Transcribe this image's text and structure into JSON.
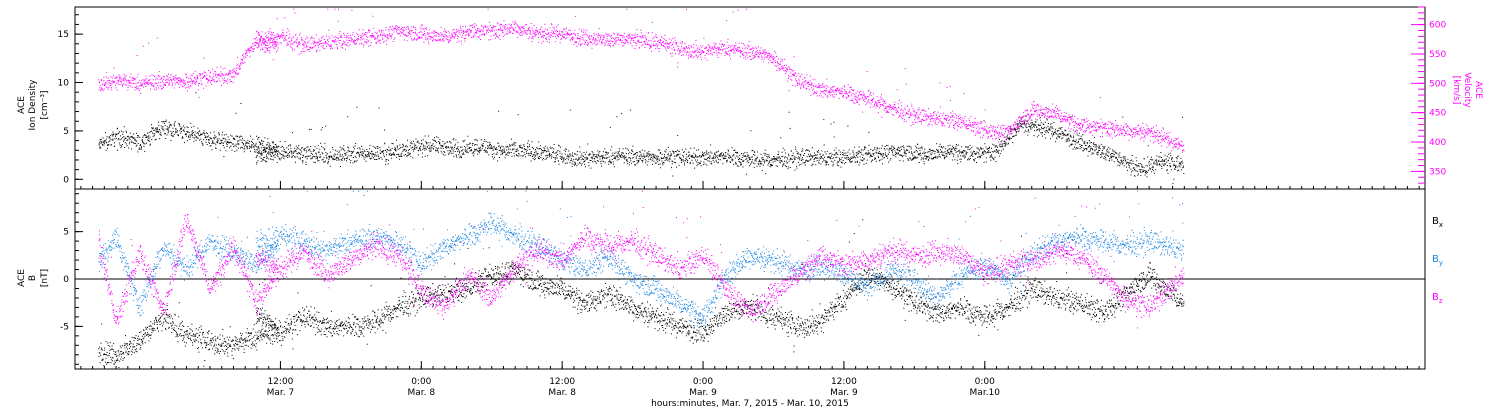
{
  "chart_data": [
    {
      "type": "scatter",
      "panel": "top",
      "ylabel_left": [
        "ACE",
        "Ion Density",
        "[cm⁻³]"
      ],
      "ylabel_right": [
        "ACE",
        "Velocity",
        "[km/s]"
      ],
      "ylim_left": [
        -1,
        17.8
      ],
      "yticks_left": [
        "0",
        "5",
        "10",
        "15"
      ],
      "ylim_right": [
        320,
        630
      ],
      "yticks_right": [
        "350",
        "400",
        "450",
        "500",
        "550",
        "600"
      ],
      "series": [
        {
          "axis": "left",
          "color": "#000000",
          "segments": [
            {
              "x": [
                -15.5,
                -14,
                -12,
                -10,
                -8,
                -6,
                -4,
                -2,
                -0.2
              ],
              "y": [
                3.5,
                4.5,
                3.8,
                5.5,
                4.8,
                4.2,
                3.8,
                3.4,
                3.2
              ]
            },
            {
              "x": [
                -2.1,
                1,
                3,
                5,
                7,
                9,
                11,
                13,
                15,
                17,
                19,
                21,
                23,
                25,
                27,
                29,
                31,
                33,
                35,
                37,
                39,
                41,
                43,
                45,
                47,
                49,
                51,
                53,
                55,
                57,
                59,
                61,
                63,
                65,
                67,
                69,
                71,
                73,
                75,
                76.9
              ],
              "y": [
                2.6,
                2.9,
                2.6,
                2.5,
                2.7,
                2.8,
                3.2,
                3.6,
                3.1,
                3.5,
                2.9,
                3.0,
                2.6,
                2.3,
                2.2,
                2.5,
                2.3,
                2.4,
                2.2,
                2.4,
                2.3,
                2.0,
                2.1,
                2.3,
                2.2,
                2.4,
                2.8,
                2.9,
                2.6,
                3.0,
                2.7,
                2.9,
                5.8,
                5.3,
                4.5,
                3.4,
                2.4,
                1.0,
                1.8,
                1.6
              ]
            }
          ]
        },
        {
          "axis": "right",
          "color": "#ff00ff",
          "segments": [
            {
              "x": [
                -15.5,
                -14,
                -12,
                -10,
                -8,
                -6,
                -4,
                -3,
                -2,
                -0.2
              ],
              "y": [
                500,
                505,
                500,
                505,
                505,
                510,
                515,
                550,
                570,
                565
              ]
            },
            {
              "x": [
                -2.1,
                0,
                2,
                4,
                6,
                8,
                10,
                12,
                14,
                16,
                18,
                20,
                22,
                24,
                26,
                28,
                30,
                32,
                34,
                36,
                38,
                40,
                42,
                44,
                46,
                48,
                50,
                52,
                54,
                56,
                58,
                60,
                62,
                64,
                66,
                68,
                70,
                72,
                74,
                76.9
              ],
              "y": [
                575,
                580,
                565,
                570,
                575,
                580,
                590,
                585,
                580,
                590,
                590,
                595,
                585,
                585,
                578,
                575,
                575,
                570,
                560,
                555,
                560,
                555,
                545,
                505,
                490,
                485,
                475,
                458,
                445,
                440,
                435,
                420,
                418,
                455,
                450,
                430,
                425,
                420,
                418,
                392
              ]
            }
          ]
        }
      ]
    },
    {
      "type": "scatter",
      "panel": "bottom",
      "ylabel_left": [
        "ACE",
        "B",
        "[nT]"
      ],
      "ylim": [
        -9.5,
        9.5
      ],
      "yticks": [
        "-5",
        "0",
        "5"
      ],
      "zero_line": true,
      "legend_placement": "right",
      "series": [
        {
          "name": "Bx",
          "color": "#000000",
          "segments": [
            {
              "x": [
                -15.5,
                -14,
                -12,
                -10,
                -8,
                -6,
                -4,
                -2,
                -0.2
              ],
              "y": [
                -7.5,
                -8.0,
                -6.5,
                -4.0,
                -6.0,
                -6.5,
                -7.0,
                -6.0,
                -5.5
              ]
            },
            {
              "x": [
                -2.1,
                0,
                2,
                4,
                6,
                8,
                10,
                12,
                14,
                16,
                18,
                20,
                22,
                24,
                26,
                28,
                30,
                32,
                34,
                36,
                38,
                40,
                42,
                44,
                46,
                48,
                50,
                52,
                54,
                56,
                58,
                60,
                62,
                64,
                66,
                68,
                70,
                72,
                74,
                76.9
              ],
              "y": [
                -3.5,
                -5.5,
                -4.0,
                -5.0,
                -5.0,
                -4.5,
                -3.0,
                -2.0,
                -1.5,
                -1.0,
                0.5,
                1.0,
                -0.5,
                -1.0,
                -2.5,
                -1.5,
                -3.0,
                -4.0,
                -5.0,
                -5.5,
                -3.5,
                -3.0,
                -4.0,
                -5.0,
                -4.5,
                -2.0,
                0.5,
                -0.5,
                -2.5,
                -3.5,
                -3.0,
                -4.0,
                -3.0,
                -1.0,
                -2.0,
                -2.5,
                -3.5,
                -1.5,
                0.5,
                -2.5
              ]
            }
          ]
        },
        {
          "name": "By",
          "color": "#1e88e5",
          "segments": [
            {
              "x": [
                -15.5,
                -14,
                -12,
                -10,
                -8,
                -6,
                -4,
                -2,
                -0.2
              ],
              "y": [
                2.0,
                4.5,
                -3.0,
                3.5,
                1.0,
                4.0,
                3.0,
                1.5,
                3.5
              ]
            },
            {
              "x": [
                -2.1,
                0,
                2,
                4,
                6,
                8,
                10,
                12,
                14,
                16,
                18,
                20,
                22,
                24,
                26,
                28,
                30,
                32,
                34,
                36,
                38,
                40,
                42,
                44,
                46,
                48,
                50,
                52,
                54,
                56,
                58,
                60,
                62,
                64,
                66,
                68,
                70,
                72,
                74,
                76.9
              ],
              "y": [
                3.5,
                4.5,
                4.0,
                3.0,
                4.0,
                4.5,
                4.0,
                1.5,
                3.5,
                4.5,
                6.0,
                4.5,
                3.5,
                2.0,
                1.0,
                2.5,
                0.0,
                -1.0,
                -2.5,
                -4.0,
                0.5,
                2.5,
                2.0,
                1.0,
                1.5,
                0.5,
                -1.0,
                1.0,
                0.0,
                -2.0,
                0.5,
                1.5,
                0.0,
                2.5,
                4.0,
                4.5,
                4.0,
                3.5,
                4.0,
                3.0
              ]
            }
          ]
        },
        {
          "name": "Bz",
          "color": "#ff00ff",
          "segments": [
            {
              "x": [
                -15.5,
                -14,
                -12,
                -10,
                -8,
                -6,
                -4,
                -2,
                -0.2
              ],
              "y": [
                4.0,
                -4.5,
                3.0,
                -3.5,
                6.5,
                -1.0,
                3.5,
                -2.5,
                1.0
              ]
            },
            {
              "x": [
                -2.1,
                0,
                2,
                4,
                6,
                8,
                10,
                12,
                14,
                16,
                18,
                20,
                22,
                24,
                26,
                28,
                30,
                32,
                34,
                36,
                38,
                40,
                42,
                44,
                46,
                48,
                50,
                52,
                54,
                56,
                58,
                60,
                62,
                64,
                66,
                68,
                70,
                72,
                74,
                76.9
              ],
              "y": [
                2.5,
                1.0,
                3.0,
                0.5,
                2.0,
                3.5,
                2.5,
                -1.0,
                -3.0,
                0.5,
                -2.0,
                1.5,
                3.0,
                2.0,
                4.5,
                3.5,
                4.0,
                2.5,
                1.0,
                2.5,
                -1.0,
                -3.5,
                -1.5,
                0.5,
                2.5,
                1.5,
                2.0,
                3.0,
                2.5,
                3.0,
                2.5,
                0.5,
                1.5,
                2.0,
                3.0,
                2.5,
                0.5,
                -2.0,
                -3.0,
                0.5
              ]
            }
          ]
        }
      ]
    },
    {
      "type": "time-axis",
      "xlim": [
        -17.5,
        97.5
      ],
      "major_ticks": [
        {
          "x": 0,
          "time": "12:00",
          "date": "Mar. 7"
        },
        {
          "x": 12,
          "time": "0:00",
          "date": "Mar. 8"
        },
        {
          "x": 24,
          "time": "12:00",
          "date": "Mar. 8"
        },
        {
          "x": 36,
          "time": "0:00",
          "date": "Mar. 9"
        },
        {
          "x": 48,
          "time": "12:00",
          "date": "Mar. 9"
        },
        {
          "x": 60,
          "time": "0:00",
          "date": "Mar.10"
        }
      ],
      "minor_tick_step": 1,
      "xlabel": "hours:minutes, Mar.  7, 2015 - Mar. 10, 2015"
    }
  ],
  "legend": [
    {
      "symbol": "B",
      "sub": "x",
      "color": "#000000"
    },
    {
      "symbol": "B",
      "sub": "y",
      "color": "#1e88e5"
    },
    {
      "symbol": "B",
      "sub": "z",
      "color": "#ff00ff"
    }
  ]
}
